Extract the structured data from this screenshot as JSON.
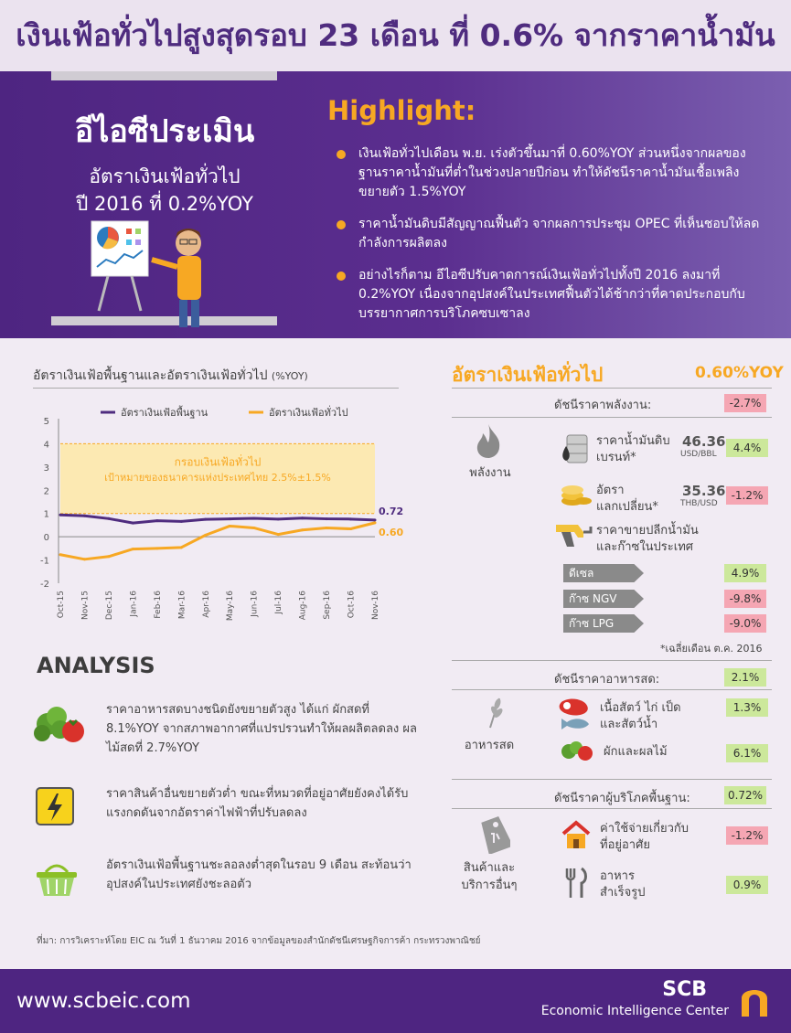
{
  "header": {
    "title": "เงินเฟ้อทั่วไปสูงสุดรอบ 23 เดือน ที่ 0.6% จากราคาน้ำมัน"
  },
  "hero": {
    "main": "อีไอซีประเมิน",
    "sub1": "อัตราเงินเฟ้อทั่วไป",
    "sub2": "ปี 2016 ที่ 0.2%YOY",
    "highlight_title": "Highlight:",
    "highlights": [
      "เงินเฟ้อทั่วไปเดือน พ.ย. เร่งตัวขึ้นมาที่ 0.60%YOY ส่วนหนึ่งจากผลของฐานราคาน้ำมันที่ต่ำในช่วงปลายปีก่อน ทำให้ดัชนีราคาน้ำมันเชื้อเพลิงขยายตัว 1.5%YOY",
      "ราคาน้ำมันดิบมีสัญญาณฟื้นตัว จากผลการประชุม OPEC ที่เห็นชอบให้ลดกำลังการผลิตลง",
      "อย่างไรก็ตาม อีไอซีปรับคาดการณ์เงินเฟ้อทั่วไปทั้งปี 2016 ลงมาที่ 0.2%YOY เนื่องจากอุปสงค์ในประเทศฟื้นตัวได้ช้ากว่าที่คาดประกอบกับบรรยากาศการบริโภคซบเซาลง"
    ]
  },
  "chart": {
    "title": "อัตราเงินเฟ้อพื้นฐานและอัตราเงินเฟ้อทั่วไป",
    "unit": "(%YOY)",
    "band_label1": "กรอบเงินเฟ้อทั่วไป",
    "band_label2": "เป้าหมายของธนาคารแห่งประเทศไทย 2.5%±1.5%",
    "end_label_core": "0.72",
    "end_label_headline": "0.60"
  },
  "chart_data": {
    "type": "line",
    "categories": [
      "Oct-15",
      "Nov-15",
      "Dec-15",
      "Jan-16",
      "Feb-16",
      "Mar-16",
      "Apr-16",
      "May-16",
      "Jun-16",
      "Jul-16",
      "Aug-16",
      "Sep-16",
      "Oct-16",
      "Nov-16"
    ],
    "series": [
      {
        "name": "อัตราเงินเฟ้อพื้นฐาน",
        "color": "#4f2c7f",
        "values": [
          0.94,
          0.9,
          0.78,
          0.59,
          0.69,
          0.66,
          0.75,
          0.77,
          0.79,
          0.76,
          0.8,
          0.77,
          0.76,
          0.72
        ]
      },
      {
        "name": "อัตราเงินเฟ้อทั่วไป",
        "color": "#f7a823",
        "values": [
          -0.77,
          -0.97,
          -0.85,
          -0.53,
          -0.5,
          -0.46,
          0.07,
          0.46,
          0.38,
          0.1,
          0.29,
          0.38,
          0.34,
          0.6
        ]
      }
    ],
    "band": {
      "low": 1,
      "high": 4,
      "color": "#fce9b2"
    },
    "ylim": [
      -2,
      5
    ],
    "yticks": [
      -2,
      -1,
      0,
      1,
      2,
      3,
      4,
      5
    ]
  },
  "analysis": {
    "title": "ANALYSIS",
    "items": [
      "ราคาอาหารสดบางชนิดยังขยายตัวสูง ได้แก่ ผักสดที่ 8.1%YOY จากสภาพอากาศที่แปรปรวนทำให้ผลผลิตลดลง ผลไม้สดที่ 2.7%YOY",
      "ราคาสินค้าอื่นขยายตัวต่ำ ขณะที่หมวดที่อยู่อาศัยยังคงได้รับแรงกดดันจากอัตราค่าไฟฟ้าที่ปรับลดลง",
      "อัตราเงินเฟ้อพื้นฐานชะลอลงต่ำสุดในรอบ 9 เดือน สะท้อนว่าอุปสงค์ในประเทศยังชะลอตัว"
    ]
  },
  "right_panel": {
    "title": "อัตราเงินเฟ้อทั่วไป",
    "value": "0.60%YOY",
    "energy": {
      "header": "ดัชนีราคาพลังงาน:",
      "header_value": "-2.7%",
      "category": "พลังงาน",
      "crude_label1": "ราคาน้ำมันดิบ",
      "crude_label2": "เบรนท์*",
      "crude_price": "46.36",
      "crude_unit": "USD/BBL",
      "crude_change": "4.4%",
      "fx_label1": "อัตรา",
      "fx_label2": "แลกเปลี่ยน*",
      "fx_value": "35.36",
      "fx_unit": "THB/USD",
      "fx_change": "-1.2%",
      "retail_label1": "ราคาขายปลีกน้ำมัน",
      "retail_label2": "และก๊าซในประเทศ",
      "fuels": [
        {
          "name": "ดีเซล",
          "change": "4.9%"
        },
        {
          "name": "ก๊าซ NGV",
          "change": "-9.8%"
        },
        {
          "name": "ก๊าซ LPG",
          "change": "-9.0%"
        }
      ],
      "note": "*เฉลี่ยเดือน ต.ค. 2016"
    },
    "food": {
      "header": "ดัชนีราคาอาหารสด:",
      "header_value": "2.1%",
      "category": "อาหารสด",
      "meat_label1": "เนื้อสัตว์ ไก่ เป็ด",
      "meat_label2": "และสัตว์น้ำ",
      "meat_change": "1.3%",
      "veg_label": "ผักและผลไม้",
      "veg_change": "6.1%"
    },
    "core": {
      "header": "ดัชนีราคาผู้บริโภคพื้นฐาน:",
      "header_value": "0.72%",
      "category1": "สินค้าและ",
      "category2": "บริการอื่นๆ",
      "housing_label1": "ค่าใช้จ่ายเกี่ยวกับ",
      "housing_label2": "ที่อยู่อาศัย",
      "housing_change": "-1.2%",
      "food_label1": "อาหาร",
      "food_label2": "สำเร็จรูป",
      "food_change": "0.9%"
    }
  },
  "source": "ที่มา: การวิเคราะห์โดย EIC ณ วันที่ 1 ธันวาคม 2016 จากข้อมูลของสำนักดัชนีเศรษฐกิจการค้า กระทรวงพาณิชย์",
  "footer": {
    "url": "www.scbeic.com",
    "brand": "SCB",
    "center": "Economic Intelligence Center"
  }
}
